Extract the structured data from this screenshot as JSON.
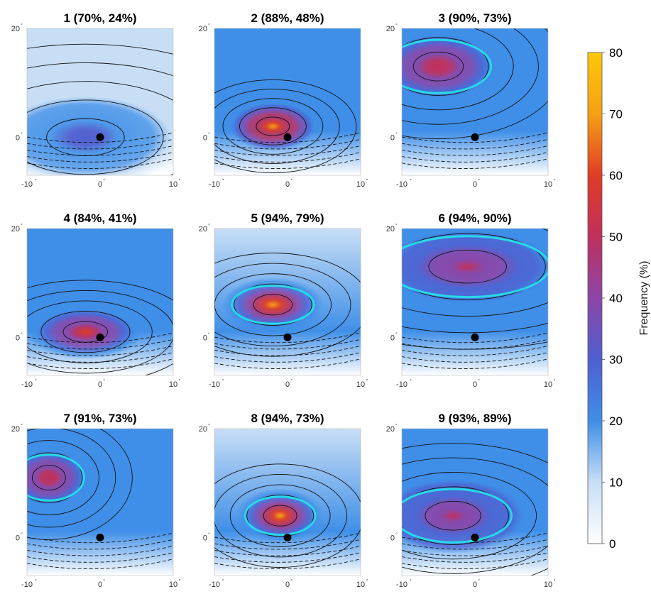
{
  "chart_data": {
    "type": "heatmap",
    "layout": "3x3 small multiples",
    "x_ticks": [
      "-10",
      "0",
      "10"
    ],
    "y_ticks": [
      "20",
      "0"
    ],
    "degree_symbol": "°",
    "xlim": [
      -10,
      10
    ],
    "ylim": [
      -7,
      20
    ],
    "center_point": [
      0,
      0
    ],
    "panels": [
      {
        "id": "1",
        "title": "1 (70%, 24%)",
        "max_frequency": 30,
        "hot_center": [
          -2,
          0
        ],
        "spread": [
          14,
          9
        ],
        "bg_level": 8
      },
      {
        "id": "2",
        "title": "2 (88%, 48%)",
        "max_frequency": 70,
        "hot_center": [
          -2,
          2
        ],
        "spread": [
          6,
          4.5
        ],
        "bg_level": 22
      },
      {
        "id": "3",
        "title": "3 (90%, 73%)",
        "max_frequency": 52,
        "hot_center": [
          -5,
          13
        ],
        "spread": [
          9,
          7
        ],
        "bg_level": 18
      },
      {
        "id": "4",
        "title": "4 (84%, 41%)",
        "max_frequency": 55,
        "hot_center": [
          -2,
          1
        ],
        "spread": [
          8,
          5
        ],
        "bg_level": 18
      },
      {
        "id": "5",
        "title": "5 (94%, 79%)",
        "max_frequency": 72,
        "hot_center": [
          -2,
          6
        ],
        "spread": [
          7,
          5
        ],
        "bg_level": 15
      },
      {
        "id": "6",
        "title": "6 (94%, 90%)",
        "max_frequency": 45,
        "hot_center": [
          -1,
          13
        ],
        "spread": [
          14,
          8
        ],
        "bg_level": 20
      },
      {
        "id": "7",
        "title": "7 (91%, 73%)",
        "max_frequency": 52,
        "hot_center": [
          -7,
          11
        ],
        "spread": [
          6,
          6
        ],
        "bg_level": 18
      },
      {
        "id": "8",
        "title": "8 (94%, 73%)",
        "max_frequency": 72,
        "hot_center": [
          -1,
          4
        ],
        "spread": [
          6,
          5
        ],
        "bg_level": 15
      },
      {
        "id": "9",
        "title": "9 (93%, 89%)",
        "max_frequency": 45,
        "hot_center": [
          -3,
          4
        ],
        "spread": [
          10,
          7
        ],
        "bg_level": 22
      }
    ],
    "colorbar": {
      "label": "Frequency (%)",
      "ticks": [
        "0",
        "10",
        "20",
        "30",
        "40",
        "50",
        "60",
        "70",
        "80"
      ],
      "min": 0,
      "max": 80,
      "colors": [
        "#ffffff",
        "#c8def5",
        "#3f8fe8",
        "#4f5fd0",
        "#8c45a8",
        "#c0305e",
        "#e03c25",
        "#f5a014",
        "#ffc80a"
      ]
    },
    "contour_color": "#111111",
    "highlight_contour_color": "#27d9e8",
    "point_color": "#000000"
  }
}
